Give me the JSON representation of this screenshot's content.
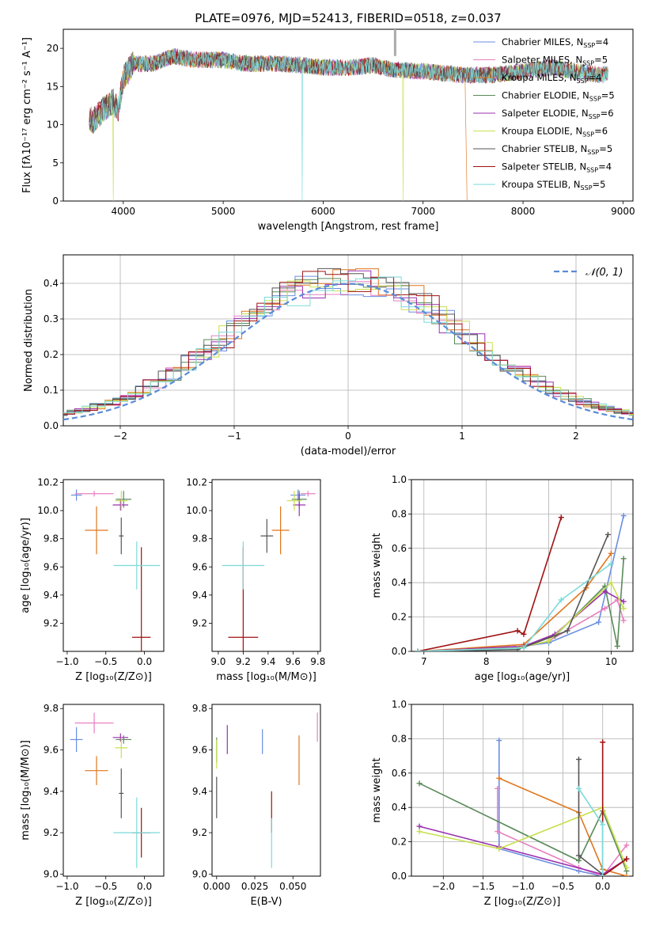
{
  "title": "PLATE=0976, MJD=52413, FIBERID=0518, z=0.037",
  "colors": {
    "c1": "#6a8ee0",
    "c2": "#e87fc0",
    "c3": "#e0761e",
    "c4": "#5a8a5a",
    "c5": "#9a30b0",
    "c6": "#c8e050",
    "c7": "#555555",
    "c8": "#a01010",
    "c9": "#7adada"
  },
  "chart_data": [
    {
      "id": "spectrum",
      "type": "line",
      "xlabel": "wavelength [Angstrom, rest frame]",
      "ylabel": "Flux [fλ10⁻¹⁷ erg cm⁻² s⁻¹ A⁻¹]",
      "xlim": [
        3400,
        9100
      ],
      "ylim": [
        0,
        22.5
      ],
      "xticks": [
        4000,
        5000,
        6000,
        7000,
        8000,
        9000
      ],
      "yticks": [
        0,
        5,
        10,
        15,
        20
      ],
      "legend_position": "top-right",
      "legend": [
        {
          "label": "Chabrier MILES, N",
          "sub": "SSP",
          "tail": "=4",
          "color": "c1"
        },
        {
          "label": "Salpeter MILES, N",
          "sub": "SSP",
          "tail": "=5",
          "color": "c2"
        },
        {
          "label": "Kroupa MILES, N",
          "sub": "SSP",
          "tail": "=4",
          "color": "c3"
        },
        {
          "label": "Chabrier ELODIE, N",
          "sub": "SSP",
          "tail": "=5",
          "color": "c4"
        },
        {
          "label": "Salpeter ELODIE, N",
          "sub": "SSP",
          "tail": "=6",
          "color": "c5"
        },
        {
          "label": "Kroupa ELODIE, N",
          "sub": "SSP",
          "tail": "=6",
          "color": "c6"
        },
        {
          "label": "Chabrier STELIB, N",
          "sub": "SSP",
          "tail": "=5",
          "color": "c7"
        },
        {
          "label": "Salpeter STELIB, N",
          "sub": "SSP",
          "tail": "=4",
          "color": "c8"
        },
        {
          "label": "Kroupa STELIB, N",
          "sub": "SSP",
          "tail": "=5",
          "color": "c9"
        }
      ],
      "continuum": [
        [
          3650,
          11
        ],
        [
          3700,
          10.5
        ],
        [
          3800,
          12
        ],
        [
          3900,
          13
        ],
        [
          3950,
          12
        ],
        [
          4000,
          16
        ],
        [
          4100,
          18
        ],
        [
          4300,
          18
        ],
        [
          4500,
          19
        ],
        [
          4700,
          18.5
        ],
        [
          5000,
          18.5
        ],
        [
          5200,
          18
        ],
        [
          5500,
          18
        ],
        [
          5800,
          17.8
        ],
        [
          6000,
          17.5
        ],
        [
          6300,
          17.5
        ],
        [
          6500,
          17.8
        ],
        [
          6700,
          17.2
        ],
        [
          7000,
          17
        ],
        [
          7400,
          16.5
        ],
        [
          7700,
          16.5
        ],
        [
          8000,
          17
        ],
        [
          8300,
          17.5
        ],
        [
          8500,
          17
        ],
        [
          8800,
          16.5
        ],
        [
          8850,
          16.8
        ]
      ]
    },
    {
      "id": "residuals",
      "type": "line",
      "xlabel": "(data-model)/error",
      "ylabel": "Normed distribution",
      "xlim": [
        -2.5,
        2.5
      ],
      "ylim": [
        0,
        0.48
      ],
      "xticks": [
        -2,
        -1,
        0,
        1,
        2
      ],
      "yticks": [
        0.0,
        0.1,
        0.2,
        0.3,
        0.4
      ],
      "normal_label": "𝒩(0, 1)",
      "normal_color": "#5b8bd8",
      "grid": true
    },
    {
      "id": "age_vs_z",
      "type": "scatter",
      "xlabel": "Z [log₁₀(Z/Z⊙)]",
      "ylabel": "age  [log₁₀(age/yr)]",
      "xlim": [
        -1.05,
        0.25
      ],
      "ylim": [
        9.0,
        10.22
      ],
      "xticks": [
        -1.0,
        -0.5,
        0.0
      ],
      "yticks": [
        9.2,
        9.4,
        9.6,
        9.8,
        10.0,
        10.2
      ],
      "points": [
        {
          "c": "c1",
          "x": -0.88,
          "y": 10.11,
          "xe": 0.07,
          "ye": 0.04
        },
        {
          "c": "c2",
          "x": -0.65,
          "y": 10.12,
          "xe": 0.25,
          "ye": 0.02
        },
        {
          "c": "c3",
          "x": -0.62,
          "y": 9.86,
          "xe": 0.15,
          "ye": 0.17
        },
        {
          "c": "c4",
          "x": -0.27,
          "y": 10.08,
          "xe": 0.1,
          "ye": 0.06
        },
        {
          "c": "c5",
          "x": -0.31,
          "y": 10.04,
          "xe": 0.1,
          "ye": 0.04
        },
        {
          "c": "c6",
          "x": -0.3,
          "y": 10.07,
          "xe": 0.08,
          "ye": 0.07
        },
        {
          "c": "c7",
          "x": -0.3,
          "y": 9.82,
          "xe": 0.03,
          "ye": 0.13
        },
        {
          "c": "c8",
          "x": -0.04,
          "y": 9.1,
          "xe": 0.12,
          "ye": 0.64
        },
        {
          "c": "c9",
          "x": -0.1,
          "y": 9.61,
          "xe": 0.3,
          "ye": 0.17
        }
      ]
    },
    {
      "id": "age_vs_mass",
      "type": "scatter",
      "xlabel": "mass [log₁₀(M/M⊙)]",
      "ylabel": "",
      "xlim": [
        8.95,
        9.82
      ],
      "ylim": [
        9.0,
        10.22
      ],
      "xticks": [
        9.0,
        9.2,
        9.4,
        9.6,
        9.8
      ],
      "yticks": [
        9.2,
        9.4,
        9.6,
        9.8,
        10.0,
        10.2
      ],
      "points": [
        {
          "c": "c1",
          "x": 9.64,
          "y": 10.11,
          "xe": 0.06,
          "ye": 0.04
        },
        {
          "c": "c2",
          "x": 9.72,
          "y": 10.12,
          "xe": 0.06,
          "ye": 0.02
        },
        {
          "c": "c3",
          "x": 9.5,
          "y": 9.86,
          "xe": 0.07,
          "ye": 0.17
        },
        {
          "c": "c4",
          "x": 9.65,
          "y": 10.08,
          "xe": 0.06,
          "ye": 0.06
        },
        {
          "c": "c5",
          "x": 9.65,
          "y": 10.04,
          "xe": 0.05,
          "ye": 0.08
        },
        {
          "c": "c6",
          "x": 9.61,
          "y": 10.07,
          "xe": 0.06,
          "ye": 0.07
        },
        {
          "c": "c7",
          "x": 9.39,
          "y": 9.82,
          "xe": 0.05,
          "ye": 0.12
        },
        {
          "c": "c8",
          "x": 9.2,
          "y": 9.1,
          "xe": 0.12,
          "ye": 0.64
        },
        {
          "c": "c9",
          "x": 9.2,
          "y": 9.61,
          "xe": 0.17,
          "ye": 0.17
        }
      ]
    },
    {
      "id": "mw_vs_age",
      "type": "line",
      "xlabel": "age  [log₁₀(age/yr)]",
      "ylabel": "mass weight",
      "xlim": [
        6.8,
        10.35
      ],
      "ylim": [
        0,
        1.0
      ],
      "xticks": [
        7,
        8,
        9,
        10
      ],
      "yticks": [
        0.0,
        0.2,
        0.4,
        0.6,
        0.8,
        1.0
      ],
      "grid": true,
      "series": [
        {
          "c": "c1",
          "x": [
            6.9,
            8.6,
            9.0,
            9.8,
            10.2
          ],
          "y": [
            0.0,
            0.03,
            0.05,
            0.17,
            0.79
          ]
        },
        {
          "c": "c2",
          "x": [
            6.9,
            8.5,
            9.0,
            9.9,
            10.1,
            10.2
          ],
          "y": [
            0.0,
            0.02,
            0.06,
            0.25,
            0.3,
            0.18
          ]
        },
        {
          "c": "c3",
          "x": [
            6.9,
            8.6,
            9.6,
            10.0
          ],
          "y": [
            0.0,
            0.04,
            0.37,
            0.57
          ]
        },
        {
          "c": "c4",
          "x": [
            6.9,
            8.5,
            9.1,
            9.9,
            10.1,
            10.2
          ],
          "y": [
            0.0,
            0.02,
            0.09,
            0.38,
            0.03,
            0.54
          ]
        },
        {
          "c": "c5",
          "x": [
            6.9,
            8.6,
            9.1,
            9.9,
            10.2
          ],
          "y": [
            0.0,
            0.03,
            0.1,
            0.35,
            0.29
          ]
        },
        {
          "c": "c6",
          "x": [
            6.9,
            8.5,
            9.0,
            10.0,
            10.2
          ],
          "y": [
            0.0,
            0.02,
            0.06,
            0.4,
            0.25
          ]
        },
        {
          "c": "c7",
          "x": [
            6.9,
            8.5,
            9.3,
            9.95
          ],
          "y": [
            0.0,
            0.01,
            0.12,
            0.68
          ]
        },
        {
          "c": "c8",
          "x": [
            6.9,
            8.5,
            8.6,
            9.2
          ],
          "y": [
            0.0,
            0.12,
            0.1,
            0.78
          ]
        },
        {
          "c": "c9",
          "x": [
            6.9,
            8.6,
            9.2,
            10.0
          ],
          "y": [
            0.0,
            0.02,
            0.3,
            0.51
          ]
        }
      ]
    },
    {
      "id": "mass_vs_z",
      "type": "scatter",
      "xlabel": "Z [log₁₀(Z/Z⊙)]",
      "ylabel": "mass [log₁₀(M/M⊙)]",
      "xlim": [
        -1.05,
        0.25
      ],
      "ylim": [
        8.99,
        9.82
      ],
      "xticks": [
        -1.0,
        -0.5,
        0.0
      ],
      "yticks": [
        9.0,
        9.2,
        9.4,
        9.6,
        9.8
      ],
      "points": [
        {
          "c": "c1",
          "x": -0.88,
          "y": 9.65,
          "xe": 0.08,
          "ye": 0.06
        },
        {
          "c": "c2",
          "x": -0.65,
          "y": 9.73,
          "xe": 0.25,
          "ye": 0.05
        },
        {
          "c": "c3",
          "x": -0.62,
          "y": 9.5,
          "xe": 0.15,
          "ye": 0.07
        },
        {
          "c": "c4",
          "x": -0.27,
          "y": 9.65,
          "xe": 0.1,
          "ye": 0.02
        },
        {
          "c": "c5",
          "x": -0.31,
          "y": 9.66,
          "xe": 0.1,
          "ye": 0.02
        },
        {
          "c": "c6",
          "x": -0.3,
          "y": 9.61,
          "xe": 0.08,
          "ye": 0.05
        },
        {
          "c": "c7",
          "x": -0.3,
          "y": 9.39,
          "xe": 0.03,
          "ye": 0.12
        },
        {
          "c": "c8",
          "x": -0.04,
          "y": 9.2,
          "xe": 0.12,
          "ye": 0.12
        },
        {
          "c": "c9",
          "x": -0.1,
          "y": 9.2,
          "xe": 0.3,
          "ye": 0.17
        }
      ]
    },
    {
      "id": "mass_vs_ebv",
      "type": "scatter",
      "xlabel": "E(B-V)",
      "ylabel": "",
      "xlim": [
        -0.003,
        0.068
      ],
      "ylim": [
        8.99,
        9.82
      ],
      "xticks": [
        0.0,
        0.025,
        0.05
      ],
      "yticks": [
        9.0,
        9.2,
        9.4,
        9.6,
        9.8
      ],
      "xticklabels": [
        "0.000",
        "0.025",
        "0.050"
      ],
      "points": [
        {
          "c": "c1",
          "x": 0.03,
          "y": 9.64,
          "ye": 0.06
        },
        {
          "c": "c2",
          "x": 0.066,
          "y": 9.71,
          "ye": 0.07
        },
        {
          "c": "c3",
          "x": 0.054,
          "y": 9.55,
          "ye": 0.12
        },
        {
          "c": "c4",
          "x": 0.0,
          "y": 9.6,
          "ye": 0.06
        },
        {
          "c": "c5",
          "x": 0.007,
          "y": 9.65,
          "ye": 0.07
        },
        {
          "c": "c6",
          "x": 0.0,
          "y": 9.58,
          "ye": 0.07
        },
        {
          "c": "c7",
          "x": 0.0,
          "y": 9.37,
          "ye": 0.1
        },
        {
          "c": "c8",
          "x": 0.036,
          "y": 9.3,
          "ye": 0.1
        },
        {
          "c": "c9",
          "x": 0.036,
          "y": 9.15,
          "ye": 0.12
        }
      ]
    },
    {
      "id": "mw_vs_z",
      "type": "line",
      "xlabel": "Z [log₁₀(Z/Z⊙)]",
      "ylabel": "mass weight",
      "xlim": [
        -2.4,
        0.38
      ],
      "ylim": [
        0,
        1.0
      ],
      "xticks": [
        -2.0,
        -1.5,
        -1.0,
        -0.5,
        0.0
      ],
      "yticks": [
        0.0,
        0.2,
        0.4,
        0.6,
        0.8,
        1.0
      ],
      "grid": true,
      "series": [
        {
          "c": "c1",
          "x": [
            -1.3,
            -1.3,
            -0.3,
            0.0
          ],
          "y": [
            0.79,
            0.16,
            0.03,
            0.0
          ]
        },
        {
          "c": "c2",
          "x": [
            -1.32,
            -1.32,
            -0.3,
            0.0,
            0.3
          ],
          "y": [
            0.51,
            0.26,
            0.05,
            0.0,
            0.18
          ]
        },
        {
          "c": "c3",
          "x": [
            -1.3,
            -0.3,
            0.0,
            0.3
          ],
          "y": [
            0.57,
            0.37,
            0.04,
            0.0
          ]
        },
        {
          "c": "c4",
          "x": [
            -2.3,
            -0.3,
            0.0,
            0.3
          ],
          "y": [
            0.54,
            0.09,
            0.38,
            0.03
          ]
        },
        {
          "c": "c5",
          "x": [
            -2.3,
            -1.3,
            0.0,
            0.3
          ],
          "y": [
            0.29,
            0.17,
            0.01,
            0.1
          ]
        },
        {
          "c": "c6",
          "x": [
            -2.3,
            -1.3,
            0.0,
            0.3
          ],
          "y": [
            0.26,
            0.16,
            0.4,
            0.05
          ]
        },
        {
          "c": "c7",
          "x": [
            -0.3,
            -0.3,
            0.0
          ],
          "y": [
            0.68,
            0.12,
            0.01
          ]
        },
        {
          "c": "c8",
          "x": [
            0.0,
            0.0,
            0.3
          ],
          "y": [
            0.78,
            0.0,
            0.1
          ]
        },
        {
          "c": "c9",
          "x": [
            -0.3,
            0.0,
            0.0
          ],
          "y": [
            0.51,
            0.3,
            0.0
          ]
        }
      ]
    }
  ]
}
